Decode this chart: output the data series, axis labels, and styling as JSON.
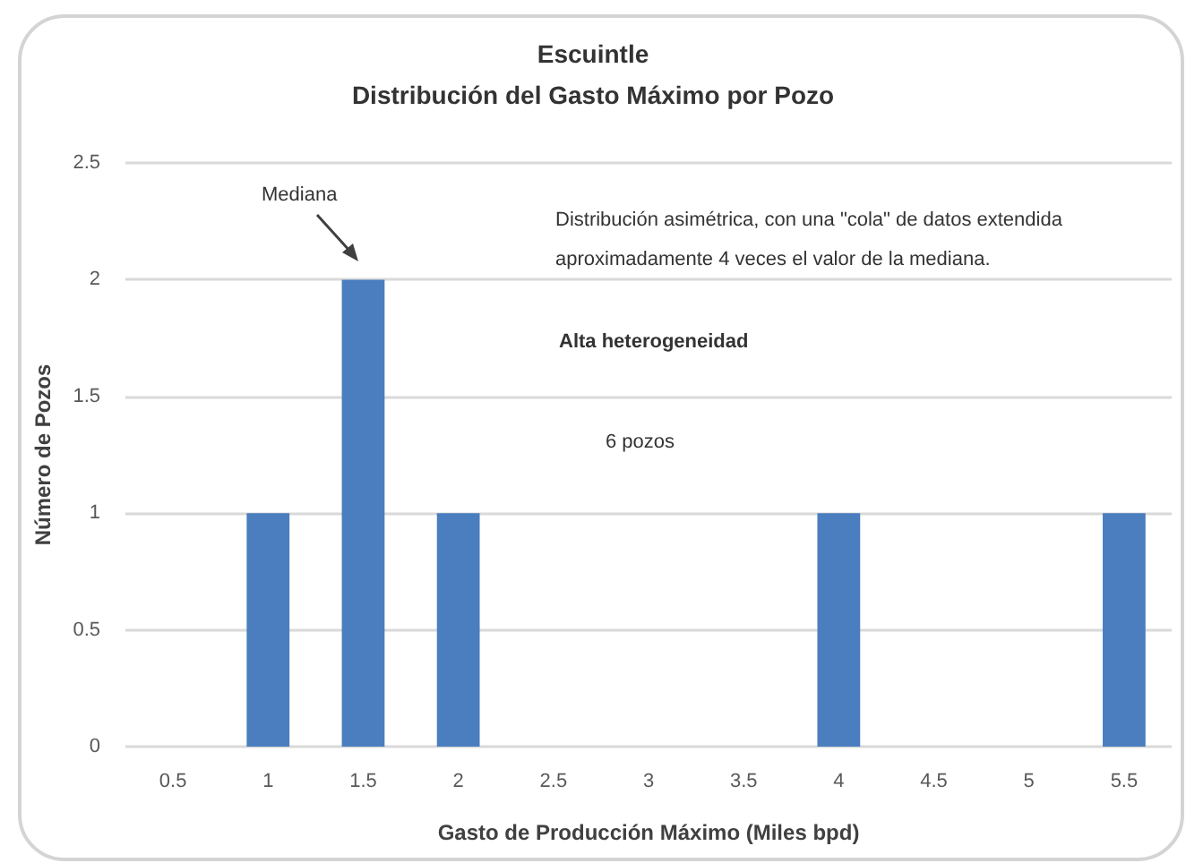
{
  "chart_data": {
    "type": "bar",
    "title": "Escuintle",
    "subtitle": "Distribución del Gasto Máximo por Pozo",
    "xlabel": "Gasto de Producción Máximo (Miles bpd)",
    "ylabel": "Número de Pozos",
    "categories": [
      "0.5",
      "1",
      "1.5",
      "2",
      "2.5",
      "3",
      "3.5",
      "4",
      "4.5",
      "5",
      "5.5"
    ],
    "values": [
      0,
      1,
      2,
      1,
      0,
      0,
      0,
      1,
      0,
      0,
      1
    ],
    "color": "#4a7ebf",
    "ylim": [
      0,
      2.5
    ],
    "yticks": [
      0,
      0.5,
      1,
      1.5,
      2,
      2.5
    ],
    "grid": "y",
    "annotations": [
      "Mediana",
      "Distribución asimétrica, con una \"cola\" de datos extendida aproximadamente 4 veces el valor de la mediana.",
      "Alta heterogeneidad",
      "6 pozos"
    ]
  }
}
